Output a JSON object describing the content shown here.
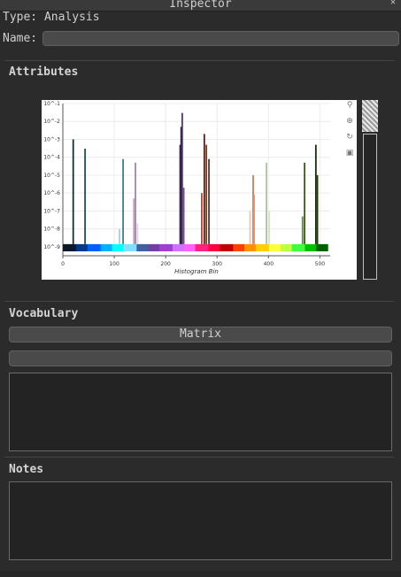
{
  "window": {
    "title": "Inspector"
  },
  "type_label": "Type: Analysis",
  "name_label": "Name:",
  "name_value": "",
  "sections": {
    "attributes": "Attributes",
    "vocabulary": "Vocabulary",
    "notes": "Notes"
  },
  "vocabulary": {
    "matrix_button": "Matrix",
    "second_button": ""
  },
  "chart_data": {
    "type": "bar",
    "xlabel": "Histogram Bin",
    "ylabel": "",
    "log_y": true,
    "xlim": [
      0,
      520
    ],
    "x_ticks": [
      "0",
      "100",
      "200",
      "300",
      "400",
      "500"
    ],
    "y_ticks": [
      "10^-9",
      "10^-8",
      "10^-7",
      "10^-6",
      "10^-5",
      "10^-4",
      "10^-3",
      "10^-2",
      "10^-1"
    ],
    "bins": [
      {
        "x": 20,
        "y": 0.001,
        "color": "#12303a"
      },
      {
        "x": 43,
        "y": 0.0003,
        "color": "#1e4f66"
      },
      {
        "x": 110,
        "y": 1e-08,
        "color": "#a7d0d8"
      },
      {
        "x": 117,
        "y": 8e-05,
        "color": "#3f7f8f"
      },
      {
        "x": 138,
        "y": 5e-07,
        "color": "#c6a0c6"
      },
      {
        "x": 141,
        "y": 5e-05,
        "color": "#a582a8"
      },
      {
        "x": 145,
        "y": 2e-08,
        "color": "#e7cde7"
      },
      {
        "x": 228,
        "y": 0.0005,
        "color": "#3c2a55"
      },
      {
        "x": 230,
        "y": 0.005,
        "color": "#2a1e40"
      },
      {
        "x": 232,
        "y": 0.03,
        "color": "#4b3566"
      },
      {
        "x": 235,
        "y": 2e-06,
        "color": "#7a4d8a"
      },
      {
        "x": 270,
        "y": 1e-06,
        "color": "#c04030"
      },
      {
        "x": 275,
        "y": 0.002,
        "color": "#4a2218"
      },
      {
        "x": 279,
        "y": 0.0005,
        "color": "#7a3a22"
      },
      {
        "x": 284,
        "y": 8e-05,
        "color": "#6b3020"
      },
      {
        "x": 364,
        "y": 1e-07,
        "color": "#f2c4b4"
      },
      {
        "x": 370,
        "y": 1e-05,
        "color": "#d07a5a"
      },
      {
        "x": 372,
        "y": 8e-07,
        "color": "#e59a76"
      },
      {
        "x": 396,
        "y": 5e-05,
        "color": "#a8c49a"
      },
      {
        "x": 401,
        "y": 1e-07,
        "color": "#cfe3c4"
      },
      {
        "x": 466,
        "y": 5e-08,
        "color": "#6a8a3a"
      },
      {
        "x": 470,
        "y": 5e-05,
        "color": "#385a1e"
      },
      {
        "x": 492,
        "y": 0.0005,
        "color": "#1a2a0e"
      },
      {
        "x": 495,
        "y": 1e-05,
        "color": "#2a3a12"
      }
    ]
  }
}
